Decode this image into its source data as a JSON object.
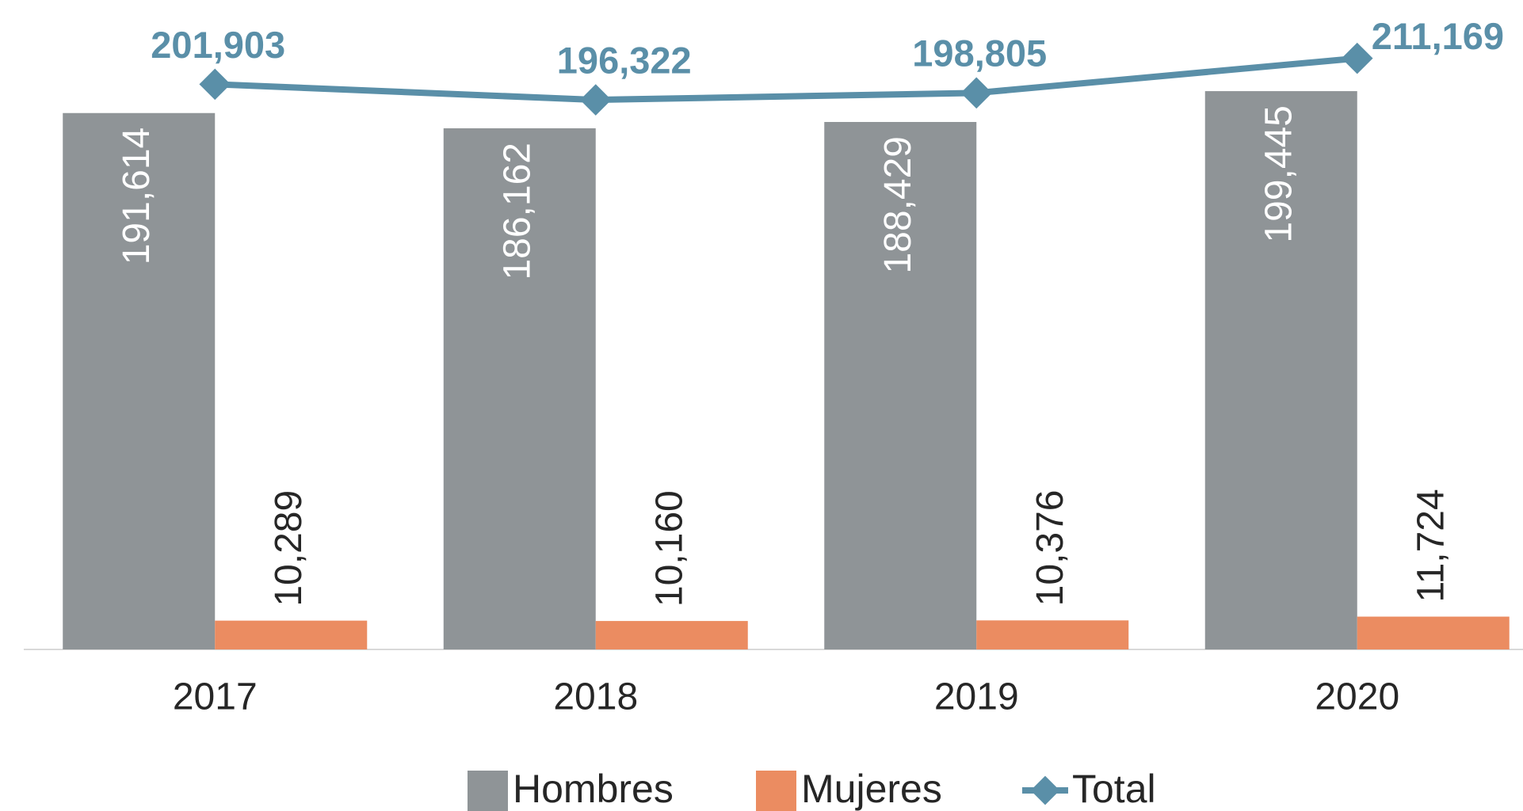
{
  "chart_data": {
    "type": "bar",
    "categories": [
      "2017",
      "2018",
      "2019",
      "2020"
    ],
    "ylim": [
      0,
      232000
    ],
    "series": [
      {
        "name": "Hombres",
        "color": "#8f9497",
        "values": [
          191614,
          186162,
          188429,
          199445
        ],
        "value_labels": [
          "191,614",
          "186,162",
          "188,429",
          "199,445"
        ]
      },
      {
        "name": "Mujeres",
        "color": "#eb8c61",
        "values": [
          10289,
          10160,
          10376,
          11724
        ],
        "value_labels": [
          "10,289",
          "10,160",
          "10,376",
          "11,724"
        ]
      },
      {
        "name": "Total",
        "type": "line",
        "color": "#5a8fa8",
        "values": [
          201903,
          196322,
          198805,
          211169
        ],
        "value_labels": [
          "201,903",
          "196,322",
          "198,805",
          "211,169"
        ]
      }
    ],
    "legend": "bottom"
  }
}
